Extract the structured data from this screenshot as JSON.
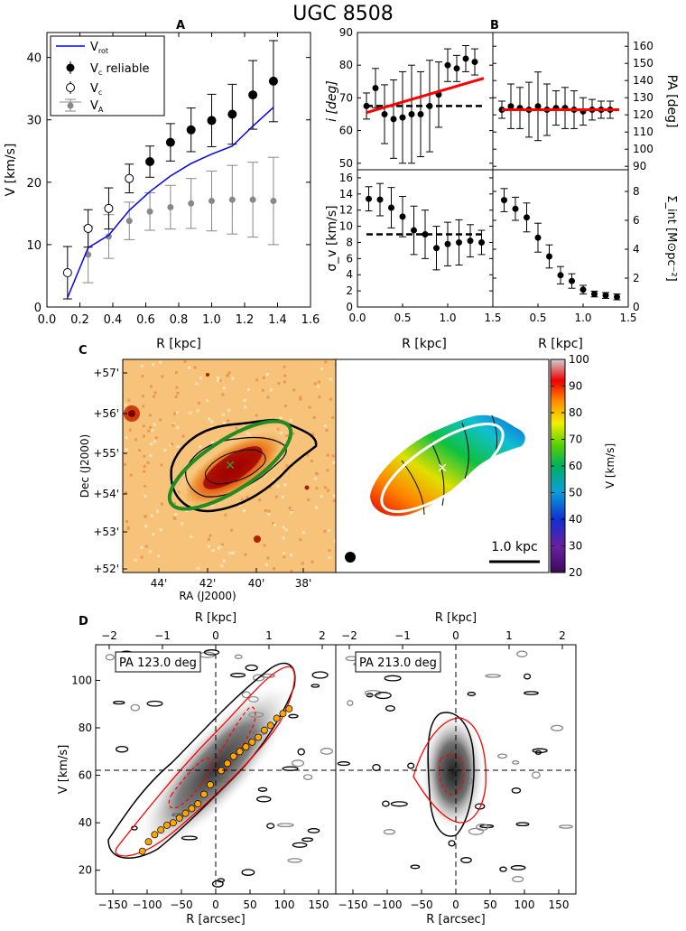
{
  "figure": {
    "title": "UGC 8508"
  },
  "colors": {
    "rot": "#0000ff",
    "fit": "#ff0000",
    "ellipse_green": "#228b22",
    "pv_model": "#ff0000",
    "pv_points": "#ffa500"
  },
  "chart_data": [
    {
      "id": "A",
      "type": "scatter",
      "panel_label": "A",
      "xlabel": "R [kpc]",
      "ylabel": "V [km/s]",
      "xlim": [
        0.0,
        1.6
      ],
      "ylim": [
        0,
        44
      ],
      "xticks": [
        "0.0",
        "0.2",
        "0.4",
        "0.6",
        "0.8",
        "1.0",
        "1.2",
        "1.4",
        "1.6"
      ],
      "yticks": [
        "0",
        "10",
        "20",
        "30",
        "40"
      ],
      "legend": {
        "rot": "V",
        "rot_sub": "rot",
        "reliable": "V",
        "reliable_sub": "c",
        "reliable_tail": " reliable",
        "vc": "V",
        "vc_sub": "c",
        "va": "V",
        "va_sub": "A"
      },
      "v_rot": {
        "x": [
          0.125,
          0.25,
          0.375,
          0.5,
          0.625,
          0.75,
          0.875,
          1.0,
          1.125,
          1.25,
          1.375
        ],
        "y": [
          1.5,
          9.5,
          11.5,
          15.5,
          18.5,
          21.0,
          23.0,
          24.5,
          25.8,
          29.0,
          32.0
        ]
      },
      "v_c_reliable": {
        "x": [
          0.625,
          0.75,
          0.875,
          1.0,
          1.125,
          1.25,
          1.375
        ],
        "y": [
          23.3,
          26.4,
          28.4,
          29.9,
          30.9,
          34.0,
          36.2
        ],
        "err": [
          2.5,
          3.0,
          3.5,
          4.2,
          4.8,
          5.5,
          6.5
        ]
      },
      "v_c": {
        "x": [
          0.125,
          0.25,
          0.375,
          0.5
        ],
        "y": [
          5.5,
          12.6,
          15.8,
          20.6
        ],
        "err": [
          4.2,
          3.0,
          3.3,
          2.3
        ]
      },
      "v_a": {
        "x": [
          0.25,
          0.375,
          0.5,
          0.625,
          0.75,
          0.875,
          1.0,
          1.125,
          1.25,
          1.375
        ],
        "y": [
          8.4,
          11.3,
          13.8,
          15.3,
          16.0,
          16.6,
          17.0,
          17.2,
          17.2,
          17.0
        ],
        "err": [
          4.5,
          3.5,
          3.0,
          3.0,
          3.5,
          4.0,
          4.8,
          5.5,
          6.0,
          7.0
        ]
      }
    },
    {
      "id": "B1",
      "type": "scatter",
      "panel_label": "B",
      "ylabel": "i [deg]",
      "xlim": [
        0.0,
        1.5
      ],
      "ylim": [
        48,
        90
      ],
      "yticks": [
        "50",
        "60",
        "70",
        "80",
        "90"
      ],
      "x": [
        0.1,
        0.2,
        0.3,
        0.4,
        0.5,
        0.6,
        0.7,
        0.8,
        0.9,
        1.0,
        1.1,
        1.2,
        1.3
      ],
      "y": [
        67.5,
        73,
        65,
        63.5,
        64,
        65,
        65,
        67.5,
        71,
        80,
        79,
        82,
        81
      ],
      "err": [
        4,
        6,
        9,
        12,
        14,
        15,
        13,
        14,
        10,
        5,
        4,
        4,
        4
      ],
      "mean_level": 67.5,
      "fit_line": {
        "x": [
          0.1,
          1.4
        ],
        "y": [
          65.5,
          76
        ]
      }
    },
    {
      "id": "B2",
      "type": "scatter",
      "ylabel": "PA [deg]",
      "xlim": [
        0.0,
        1.5
      ],
      "ylim": [
        88,
        168
      ],
      "yticks": [
        "90",
        "100",
        "110",
        "120",
        "130",
        "140",
        "150",
        "160"
      ],
      "x": [
        0.1,
        0.2,
        0.3,
        0.4,
        0.5,
        0.6,
        0.7,
        0.8,
        0.9,
        1.0,
        1.1,
        1.2,
        1.3
      ],
      "y": [
        123,
        125,
        124,
        123,
        125,
        123,
        124,
        124,
        123,
        122,
        123,
        123,
        123
      ],
      "err": [
        5,
        13,
        12,
        16,
        20,
        15,
        10,
        12,
        11,
        8,
        6,
        5,
        5
      ],
      "fit_level": 123
    },
    {
      "id": "B3",
      "type": "scatter",
      "ylabel": "σ_v [km/s]",
      "xlabel": "R [kpc]",
      "xlim": [
        0.0,
        1.5
      ],
      "ylim": [
        0,
        17
      ],
      "xticks": [
        "0.0",
        "0.5",
        "1.0",
        "1.5"
      ],
      "yticks": [
        "0",
        "2",
        "4",
        "6",
        "8",
        "10",
        "12",
        "14",
        "16"
      ],
      "x": [
        0.125,
        0.25,
        0.375,
        0.5,
        0.625,
        0.75,
        0.875,
        1.0,
        1.125,
        1.25,
        1.375
      ],
      "y": [
        13.4,
        13.3,
        12.3,
        11.2,
        9.5,
        9.0,
        7.3,
        7.8,
        8.0,
        8.2,
        8.0
      ],
      "err": [
        1.5,
        2.0,
        2.5,
        2.5,
        3.0,
        3.0,
        2.7,
        2.7,
        2.8,
        2.0,
        1.5
      ],
      "mean_level": 9.0
    },
    {
      "id": "B4",
      "type": "scatter",
      "ylabel": "Σ_int [M⊙pc⁻²]",
      "xlabel": "R [kpc]",
      "xlim": [
        0.0,
        1.5
      ],
      "ylim": [
        0,
        9.5
      ],
      "xticks": [
        "0.5",
        "1.0",
        "1.5"
      ],
      "yticks": [
        "0",
        "2",
        "4",
        "6",
        "8"
      ],
      "x": [
        0.125,
        0.25,
        0.375,
        0.5,
        0.625,
        0.75,
        0.875,
        1.0,
        1.125,
        1.25,
        1.375
      ],
      "y": [
        7.4,
        6.8,
        6.2,
        4.8,
        3.5,
        2.2,
        1.8,
        1.2,
        0.9,
        0.8,
        0.7
      ],
      "err": [
        0.8,
        0.8,
        1.0,
        1.0,
        0.8,
        0.6,
        0.5,
        0.3,
        0.2,
        0.2,
        0.2
      ]
    },
    {
      "id": "C-image",
      "type": "heatmap",
      "panel_label": "C",
      "xlabel": "RA (J2000)",
      "ylabel": "Dec (J2000)",
      "xticks": [
        "44'",
        "42'",
        "40'",
        "38'"
      ],
      "yticks": [
        "+57'",
        "+56'",
        "+55'",
        "+54'",
        "+53'",
        "+52'"
      ]
    },
    {
      "id": "C-velocity-field",
      "type": "heatmap",
      "scale_label": "1.0 kpc",
      "colorbar_label": "V [km/s]",
      "colorbar_ticks": [
        "100",
        "90",
        "80",
        "70",
        "60",
        "50",
        "40",
        "30",
        "20"
      ]
    },
    {
      "id": "D-major",
      "type": "heatmap",
      "panel_label": "D",
      "annotation": "PA 123.0 deg",
      "xlabel": "R [arcsec]",
      "ylabel": "V [km/s]",
      "top_label": "R [kpc]",
      "xticks": [
        "−150",
        "−100",
        "−50",
        "0",
        "50",
        "100",
        "150"
      ],
      "top_ticks": [
        "−2",
        "−1",
        "0",
        "1",
        "2"
      ],
      "yticks": [
        "20",
        "40",
        "60",
        "80",
        "100"
      ],
      "rotation_points": {
        "x": [
          -107,
          -98,
          -89,
          -80,
          -71,
          -62,
          -53,
          -44,
          -35,
          -26,
          -17,
          -8,
          8,
          17,
          26,
          35,
          44,
          53,
          62,
          71,
          80,
          89,
          98,
          107
        ],
        "y": [
          28,
          32,
          35,
          37,
          39,
          40,
          42,
          44,
          46,
          48,
          52,
          56,
          62,
          65,
          68,
          70,
          72,
          74,
          76,
          79,
          81,
          84,
          86,
          88
        ]
      }
    },
    {
      "id": "D-minor",
      "type": "heatmap",
      "annotation": "PA 213.0 deg",
      "xlabel": "R [arcsec]",
      "top_label": "R [kpc]",
      "xticks": [
        "−150",
        "−100",
        "−50",
        "0",
        "50",
        "100",
        "150"
      ],
      "top_ticks": [
        "−2",
        "−1",
        "0",
        "1",
        "2"
      ]
    }
  ]
}
